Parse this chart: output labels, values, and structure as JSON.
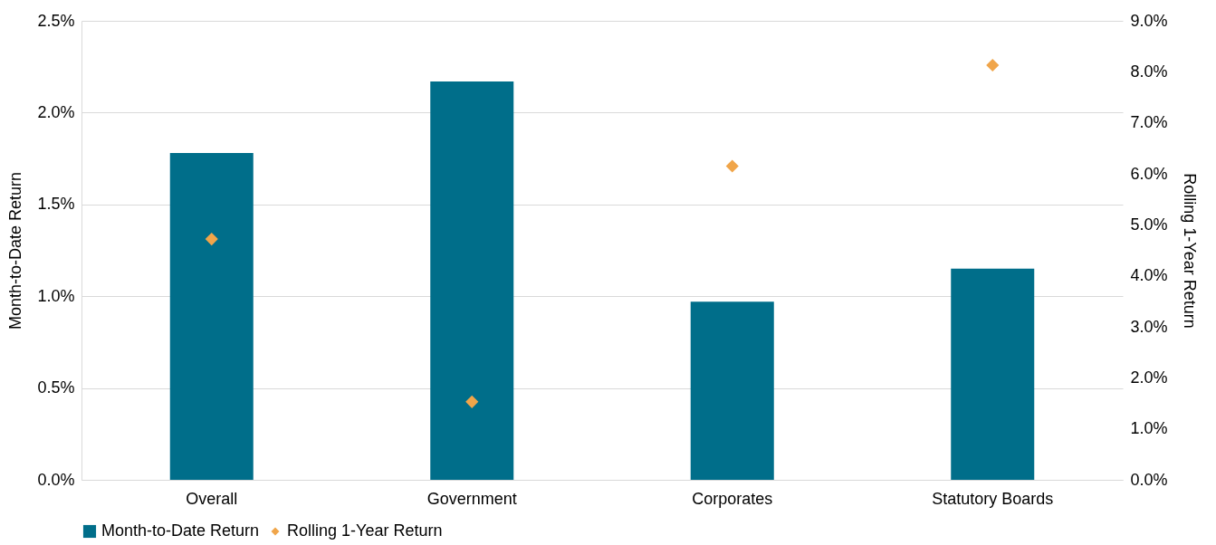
{
  "chart_data": {
    "type": "bar",
    "ylabel": "Month-to-Date Return",
    "y2label": "Rolling 1-Year Return",
    "categories": [
      "Overall",
      "Government",
      "Corporates",
      "Statutory Boards"
    ],
    "series": [
      {
        "name": "Month-to-Date Return",
        "color": "#006e8a",
        "values": [
          1.78,
          2.17,
          0.97,
          1.15
        ]
      },
      {
        "name": "Rolling 1-Year Return",
        "type": "scatter",
        "axis": "y2",
        "color": "#f0a54a",
        "values": [
          4.72,
          1.53,
          6.15,
          8.13
        ]
      }
    ],
    "ylim": [
      0,
      2.5
    ],
    "yticks": [
      {
        "value": 0,
        "label": "0.0%"
      },
      {
        "value": 0.5,
        "label": "0.5%"
      },
      {
        "value": 1,
        "label": "1.0%"
      },
      {
        "value": 1.5,
        "label": "1.5%"
      },
      {
        "value": 2,
        "label": "2.0%"
      },
      {
        "value": 2.5,
        "label": "2.5%"
      }
    ],
    "y2lim": [
      0,
      9
    ],
    "y2ticks": [
      {
        "value": 0,
        "label": "0.0%"
      },
      {
        "value": 1,
        "label": "1.0%"
      },
      {
        "value": 2,
        "label": "2.0%"
      },
      {
        "value": 3,
        "label": "3.0%"
      },
      {
        "value": 4,
        "label": "4.0%"
      },
      {
        "value": 5,
        "label": "5.0%"
      },
      {
        "value": 6,
        "label": "6.0%"
      },
      {
        "value": 7,
        "label": "7.0%"
      },
      {
        "value": 8,
        "label": "8.0%"
      },
      {
        "value": 9,
        "label": "9.0%"
      }
    ],
    "grid": "y",
    "legend": "bottom",
    "marker": "diamond"
  }
}
